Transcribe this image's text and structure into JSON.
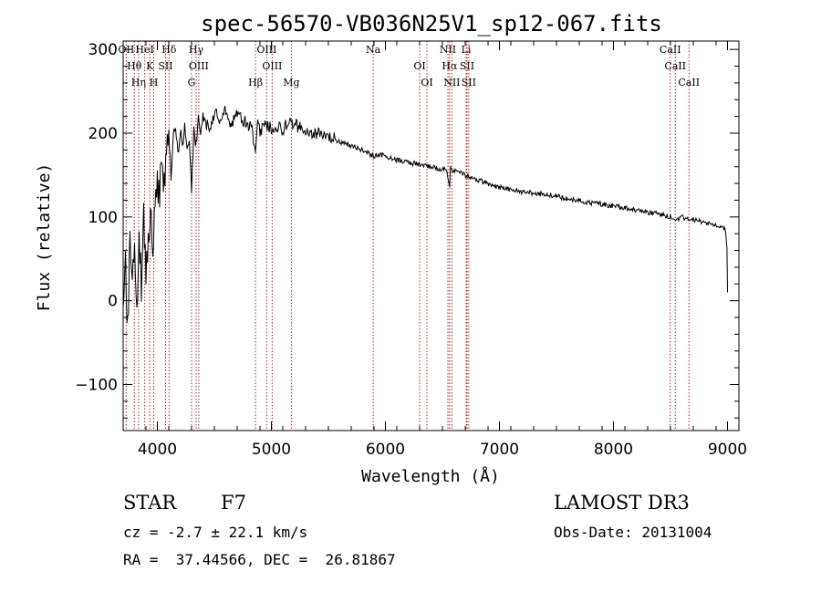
{
  "chart_data": {
    "type": "line",
    "title": "spec-56570-VB036N25V1_sp12-067.fits",
    "xlabel": "Wavelength (Å)",
    "ylabel": "Flux (relative)",
    "xlim": [
      3700,
      9100
    ],
    "ylim": [
      -155,
      310
    ],
    "x_ticks": [
      4000,
      5000,
      6000,
      7000,
      8000,
      9000
    ],
    "y_ticks": [
      -100,
      0,
      100,
      200,
      300
    ],
    "grid": false,
    "series": [
      {
        "name": "flux",
        "color": "#000000",
        "x": [
          3700,
          3720,
          3740,
          3760,
          3780,
          3800,
          3820,
          3840,
          3860,
          3880,
          3900,
          3920,
          3940,
          3960,
          3980,
          4000,
          4020,
          4040,
          4060,
          4080,
          4100,
          4120,
          4140,
          4160,
          4180,
          4200,
          4220,
          4240,
          4260,
          4280,
          4300,
          4320,
          4340,
          4360,
          4380,
          4400,
          4450,
          4500,
          4550,
          4600,
          4650,
          4700,
          4750,
          4800,
          4830,
          4861,
          4880,
          4900,
          4950,
          5000,
          5050,
          5100,
          5150,
          5200,
          5250,
          5300,
          5350,
          5400,
          5450,
          5500,
          5550,
          5600,
          5650,
          5700,
          5750,
          5800,
          5850,
          5900,
          5950,
          6000,
          6100,
          6200,
          6300,
          6400,
          6500,
          6540,
          6563,
          6570,
          6600,
          6700,
          6800,
          6900,
          7000,
          7200,
          7400,
          7600,
          7800,
          8000,
          8200,
          8400,
          8500,
          8542,
          8600,
          8662,
          8700,
          8800,
          8900,
          8950,
          8980,
          8995,
          9000
        ],
        "y": [
          -20,
          60,
          -40,
          80,
          10,
          90,
          -10,
          70,
          20,
          100,
          40,
          60,
          110,
          30,
          120,
          140,
          130,
          180,
          140,
          190,
          200,
          150,
          195,
          210,
          170,
          205,
          180,
          220,
          175,
          190,
          130,
          200,
          185,
          215,
          195,
          220,
          205,
          225,
          215,
          230,
          210,
          222,
          215,
          210,
          205,
          170,
          215,
          200,
          212,
          205,
          208,
          205,
          212,
          210,
          208,
          205,
          202,
          200,
          198,
          195,
          193,
          188,
          188,
          185,
          182,
          180,
          176,
          172,
          175,
          172,
          168,
          165,
          163,
          160,
          157,
          155,
          135,
          158,
          155,
          150,
          145,
          140,
          135,
          130,
          127,
          122,
          117,
          113,
          108,
          103,
          100,
          95,
          100,
          98,
          97,
          93,
          90,
          87,
          86,
          60,
          10
        ]
      }
    ],
    "line_marks": [
      {
        "label": "OII",
        "x": 3727
      },
      {
        "label": "Hθ",
        "x": 3798
      },
      {
        "label": "Hη",
        "x": 3835
      },
      {
        "label": "HeI",
        "x": 3889
      },
      {
        "label": "K",
        "x": 3934
      },
      {
        "label": "H",
        "x": 3968
      },
      {
        "label": "Hδ",
        "x": 4102
      },
      {
        "label": "SII",
        "x": 4072
      },
      {
        "label": "G",
        "x": 4300
      },
      {
        "label": "Hγ",
        "x": 4340
      },
      {
        "label": "OIII",
        "x": 4363
      },
      {
        "label": "Hβ",
        "x": 4861
      },
      {
        "label": "OIII",
        "x": 4959
      },
      {
        "label": "OIII",
        "x": 5007
      },
      {
        "label": "Mg",
        "x": 5175
      },
      {
        "label": "Na",
        "x": 5893
      },
      {
        "label": "OI",
        "x": 6300
      },
      {
        "label": "OI",
        "x": 6364
      },
      {
        "label": "NII",
        "x": 6548
      },
      {
        "label": "Hα",
        "x": 6563
      },
      {
        "label": "NII",
        "x": 6583
      },
      {
        "label": "Li",
        "x": 6708
      },
      {
        "label": "SII",
        "x": 6716
      },
      {
        "label": "SII",
        "x": 6731
      },
      {
        "label": "CaII",
        "x": 8498
      },
      {
        "label": "CaII",
        "x": 8542
      },
      {
        "label": "CaII",
        "x": 8662
      }
    ],
    "line_color": "#a52a2a"
  },
  "info": {
    "object_class": "STAR",
    "subclass": "F7",
    "survey": "LAMOST DR3",
    "redshift": "cz = -2.7 ± 22.1 km/s",
    "obs_date": "Obs-Date: 20131004",
    "coords": "RA =  37.44566, DEC =  26.81867"
  }
}
